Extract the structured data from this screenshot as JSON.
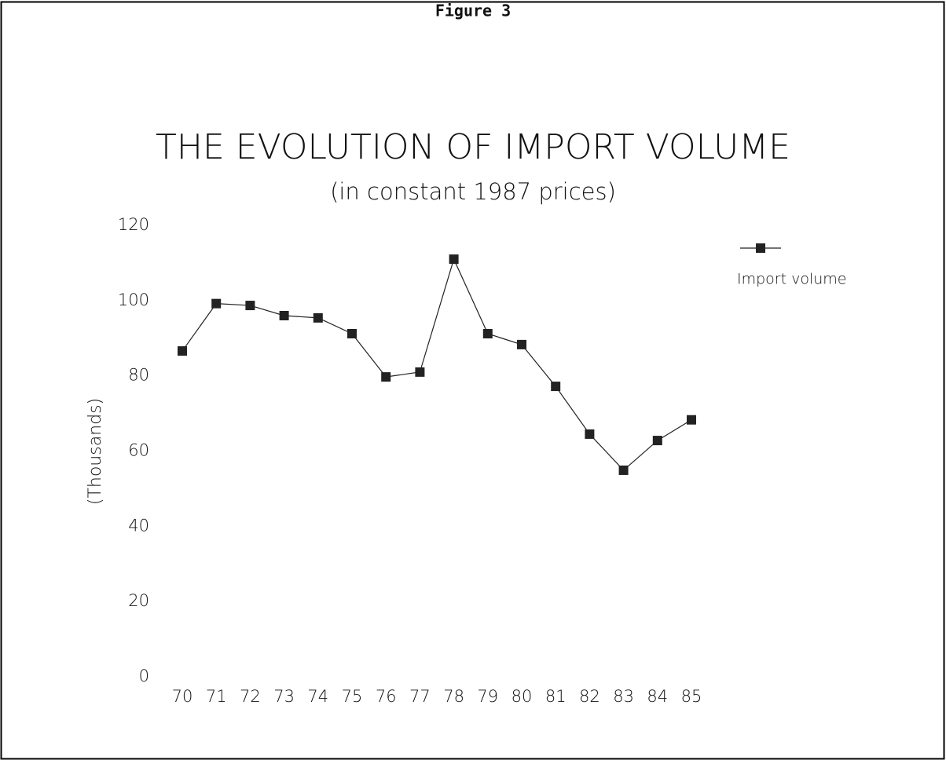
{
  "chart_data": {
    "type": "line",
    "header": "Figure 3",
    "title": "THE EVOLUTION OF IMPORT VOLUME",
    "subtitle": "(in constant 1987 prices)",
    "y_label": "(Thousands)",
    "categories": [
      "70",
      "71",
      "72",
      "73",
      "74",
      "75",
      "76",
      "77",
      "78",
      "79",
      "80",
      "81",
      "82",
      "83",
      "84",
      "85"
    ],
    "series": [
      {
        "name": "Import volume",
        "color": "#222222",
        "values": [
          86.6,
          99.2,
          98.7,
          96,
          95.4,
          91.2,
          79.7,
          81,
          111,
          91.2,
          88.3,
          77.2,
          64.5,
          54.9,
          62.8,
          68.3
        ]
      }
    ],
    "ylim": [
      0,
      120
    ],
    "yticks": [
      0,
      20,
      40,
      60,
      80,
      100,
      120
    ],
    "grid": false,
    "legend": "top-right"
  }
}
